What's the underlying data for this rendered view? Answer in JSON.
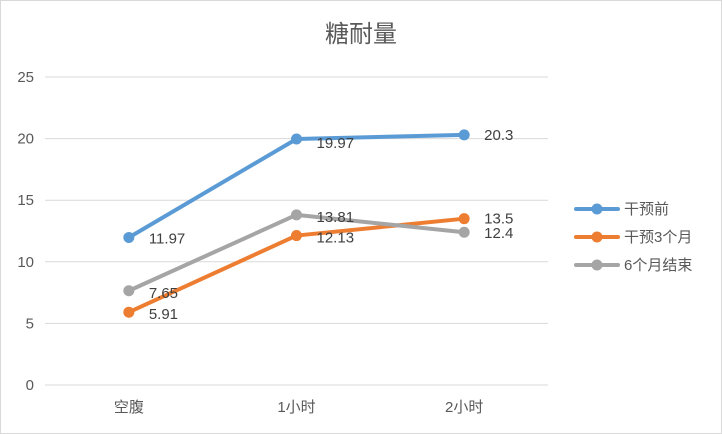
{
  "chart_data": {
    "type": "line",
    "title": "糖耐量",
    "categories": [
      "空腹",
      "1小时",
      "2小时"
    ],
    "ylim": [
      0,
      25
    ],
    "yticks": [
      0,
      5,
      10,
      15,
      20,
      25
    ],
    "grid": true,
    "legend": "right",
    "series": [
      {
        "name": "干预前",
        "color": "#5b9bd5",
        "values": [
          11.97,
          19.97,
          20.3
        ],
        "labels": [
          "11.97",
          "19.97",
          "20.3"
        ]
      },
      {
        "name": "干预3个月",
        "color": "#ed7d31",
        "values": [
          5.91,
          12.13,
          13.5
        ],
        "labels": [
          "5.91",
          "12.13",
          "13.5"
        ]
      },
      {
        "name": "6个月结束",
        "color": "#a5a5a5",
        "values": [
          7.65,
          13.81,
          12.4
        ],
        "labels": [
          "7.65",
          "13.81",
          "12.4"
        ]
      }
    ]
  }
}
